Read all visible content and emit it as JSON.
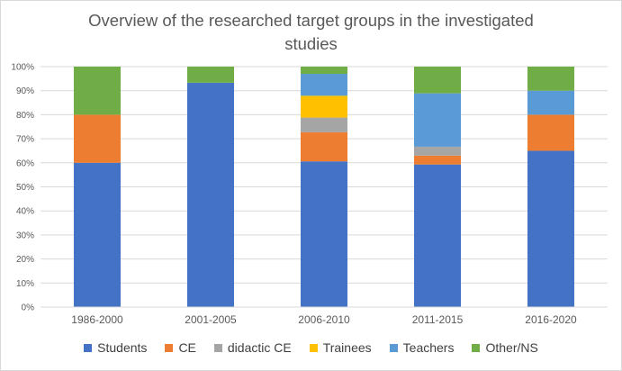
{
  "chart_data": {
    "type": "bar",
    "stacked": true,
    "title": "Overview of the researched target groups in the investigated studies",
    "title_lines": [
      "Overview of the researched target groups in the investigated",
      "studies"
    ],
    "categories": [
      "1986-2000",
      "2001-2005",
      "2006-2010",
      "2011-2015",
      "2016-2020"
    ],
    "ylim": [
      0,
      100
    ],
    "yticks": [
      "0%",
      "10%",
      "20%",
      "30%",
      "40%",
      "50%",
      "60%",
      "70%",
      "80%",
      "90%",
      "100%"
    ],
    "grid": true,
    "legend_position": "bottom",
    "series": [
      {
        "name": "Students",
        "color": "#4472c4",
        "values": [
          60,
          93.3,
          60.6,
          59.3,
          65
        ]
      },
      {
        "name": "CE",
        "color": "#ed7d31",
        "values": [
          20,
          0,
          12.1,
          3.7,
          15
        ]
      },
      {
        "name": "didactic CE",
        "color": "#a5a5a5",
        "values": [
          0,
          0,
          6.1,
          3.7,
          0
        ]
      },
      {
        "name": "Trainees",
        "color": "#ffc000",
        "values": [
          0,
          0,
          9.1,
          0,
          0
        ]
      },
      {
        "name": "Teachers",
        "color": "#5b9bd5",
        "values": [
          0,
          0,
          9.1,
          22.2,
          10
        ]
      },
      {
        "name": "Other/NS",
        "color": "#70ad47",
        "values": [
          20,
          6.7,
          3.0,
          11.1,
          10
        ]
      }
    ]
  }
}
